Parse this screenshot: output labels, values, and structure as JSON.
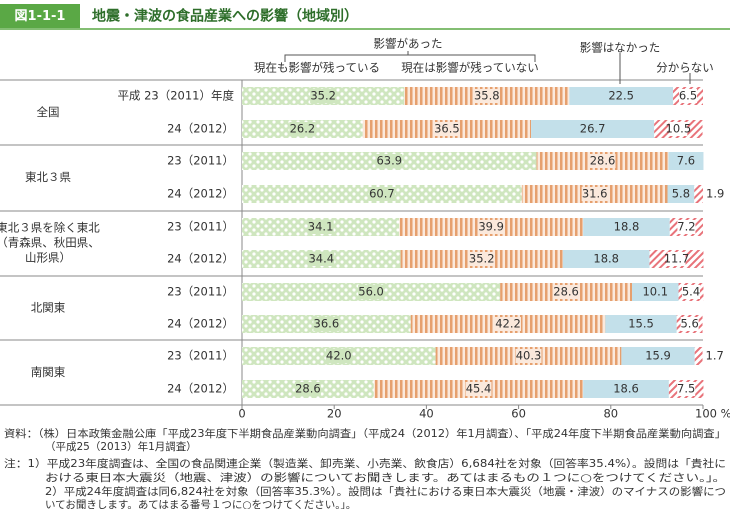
{
  "header": {
    "figure_no": "図1-1-1",
    "title": "地震・津波の食品産業への影響（地域別）"
  },
  "chart_data": {
    "type": "stacked-barh",
    "legend_group": "影響があった",
    "groups": [
      [
        "全国"
      ],
      [
        "東北３県"
      ],
      [
        "東北３県を除く東北",
        "（青森県、秋田県、",
        "山形県）"
      ],
      [
        "北関東"
      ],
      [
        "南関東"
      ]
    ],
    "categories": [
      "平成 23（2011）年度",
      "24（2012）",
      "23（2011）",
      "24（2012）",
      "23（2011）",
      "24（2012）",
      "23（2011）",
      "24（2012）",
      "23（2011）",
      "24（2012）"
    ],
    "series": [
      {
        "name": "現在も影響が残っている",
        "color": "#cfe6bf",
        "pattern": "dots",
        "values": [
          35.2,
          26.2,
          63.9,
          60.7,
          34.1,
          34.4,
          56.0,
          36.6,
          42.0,
          28.6
        ],
        "value_labels": [
          "35.2",
          "26.2",
          "63.9",
          "60.7",
          "34.1",
          "34.4",
          "56.0",
          "36.6",
          "42.0",
          "28.6"
        ]
      },
      {
        "name": "現在は影響が残っていない",
        "color": "#e6a06e",
        "pattern": "vstripes",
        "values": [
          35.8,
          36.5,
          28.6,
          31.6,
          39.9,
          35.2,
          28.6,
          42.2,
          40.3,
          45.4
        ]
      },
      {
        "name": "影響はなかった",
        "color": "#c3e0ea",
        "pattern": "solid",
        "values": [
          22.5,
          26.7,
          7.6,
          5.8,
          18.8,
          18.8,
          10.1,
          15.5,
          15.9,
          18.6
        ]
      },
      {
        "name": "分からない",
        "color": "#e8737a",
        "pattern": "hatch",
        "values": [
          6.5,
          10.5,
          null,
          1.9,
          7.2,
          11.7,
          5.4,
          5.6,
          1.7,
          7.5
        ]
      }
    ],
    "xlim": [
      0,
      100
    ],
    "xticks": [
      0,
      20,
      40,
      60,
      80,
      {
        "value": 100,
        "label": "100 %"
      }
    ]
  },
  "notes": [
    "資料：（株）日本政策金融公庫「平成23年度下半期食品産業動向調査」（平成24（2012）年1月調査）、「平成24年度下半期食品産業動向調査」",
    "（平成25（2013）年1月調査）",
    "注：1）平成23年度調査は、全国の食品関連企業（製造業、卸売業、小売業、飲食店）6,684社を対象（回答率35.4%）。設問は「貴社に",
    "おける東日本大震災（地震、津波）の影響についてお聞きします。あてはまるもの１つに○をつけてください。」。",
    "2）平成24年度調査は同6,824社を対象（回答率35.3%）。設問は「貴社における東日本大震災（地震・津波）のマイナスの影響につ",
    "いてお聞きします。あてはまる番号１つに○をつけてください。」。"
  ]
}
